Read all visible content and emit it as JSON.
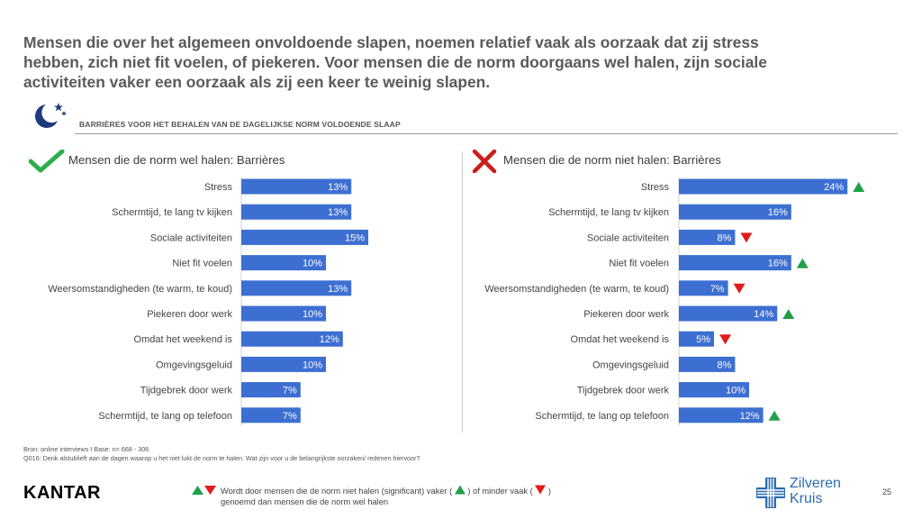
{
  "title": {
    "line1": "Mensen die over het algemeen onvoldoende slapen, noemen relatief vaak als oorzaak dat zij stress",
    "line2": "hebben, zich niet fit voelen, of piekeren. Voor mensen die de norm doorgaans wel halen, zijn sociale",
    "line3": "activiteiten vaker een oorzaak als zij een keer te weinig slapen."
  },
  "section_label": "BARRIÈRES VOOR HET BEHALEN VAN DE DAGELIJKSE NORM VOLDOENDE SLAAP",
  "icons": {
    "moon": "moon-stars-icon",
    "left": "checkmark-icon",
    "right": "cross-icon",
    "up": "triangle-up-icon",
    "down": "triangle-down-icon"
  },
  "colors": {
    "bar": "#3d6fd2",
    "bar_label": "#ffffff",
    "up": "#21a04a",
    "down": "#e01b1b",
    "check": "#2dae4a",
    "cross": "#c8201c",
    "brand_blue": "#2a6db0"
  },
  "chart_data": [
    {
      "type": "bar",
      "orientation": "horizontal",
      "title": "Mensen die de norm wel halen: Barrières",
      "categories": [
        "Stress",
        "Schermtijd, te lang tv kijken",
        "Sociale activiteiten",
        "Niet fit voelen",
        "Weersomstandigheden (te warm, te koud)",
        "Piekeren door werk",
        "Omdat het weekend is",
        "Omgevingsgeluid",
        "Tijdgebrek door werk",
        "Schermtijd, te lang op telefoon"
      ],
      "values": [
        13,
        13,
        15,
        10,
        13,
        10,
        12,
        10,
        7,
        7
      ],
      "value_labels": [
        "13%",
        "13%",
        "15%",
        "10%",
        "13%",
        "10%",
        "12%",
        "10%",
        "7%",
        "7%"
      ],
      "significance": [
        "",
        "",
        "",
        "",
        "",
        "",
        "",
        "",
        "",
        ""
      ],
      "xlim": [
        0,
        30
      ],
      "grid": false
    },
    {
      "type": "bar",
      "orientation": "horizontal",
      "title": "Mensen die de norm niet halen: Barrières",
      "categories": [
        "Stress",
        "Schermtijd, te lang tv kijken",
        "Sociale activiteiten",
        "Niet fit voelen",
        "Weersomstandigheden (te warm, te koud)",
        "Piekeren door werk",
        "Omdat het weekend is",
        "Omgevingsgeluid",
        "Tijdgebrek door werk",
        "Schermtijd, te lang op telefoon"
      ],
      "values": [
        24,
        16,
        8,
        16,
        7,
        14,
        5,
        8,
        10,
        12
      ],
      "value_labels": [
        "24%",
        "16%",
        "8%",
        "16%",
        "7%",
        "14%",
        "5%",
        "8%",
        "10%",
        "12%"
      ],
      "significance": [
        "up",
        "",
        "down",
        "up",
        "down",
        "up",
        "down",
        "",
        "",
        "up"
      ],
      "xlim": [
        0,
        30
      ],
      "grid": false
    }
  ],
  "footer": {
    "source": "Bron: online interviews I Base: n= 668 - 306",
    "question": "Q016: Denk alstublieft aan de dagen waarop u het niet lukt de norm te halen. Wat zijn voor u de belangrijkste oorzaken/ redenen hiervoor?"
  },
  "legend": {
    "line1_a": "Wordt door mensen die de norm niet halen (significant) vaker (",
    "line1_b": ") of minder vaak (",
    "line1_c": ")",
    "line2": "genoemd dan mensen die de norm wel halen"
  },
  "brand": {
    "kantar": "KANTAR",
    "zk_line1": "Zilveren",
    "zk_line2": "Kruis"
  },
  "page_number": "25"
}
